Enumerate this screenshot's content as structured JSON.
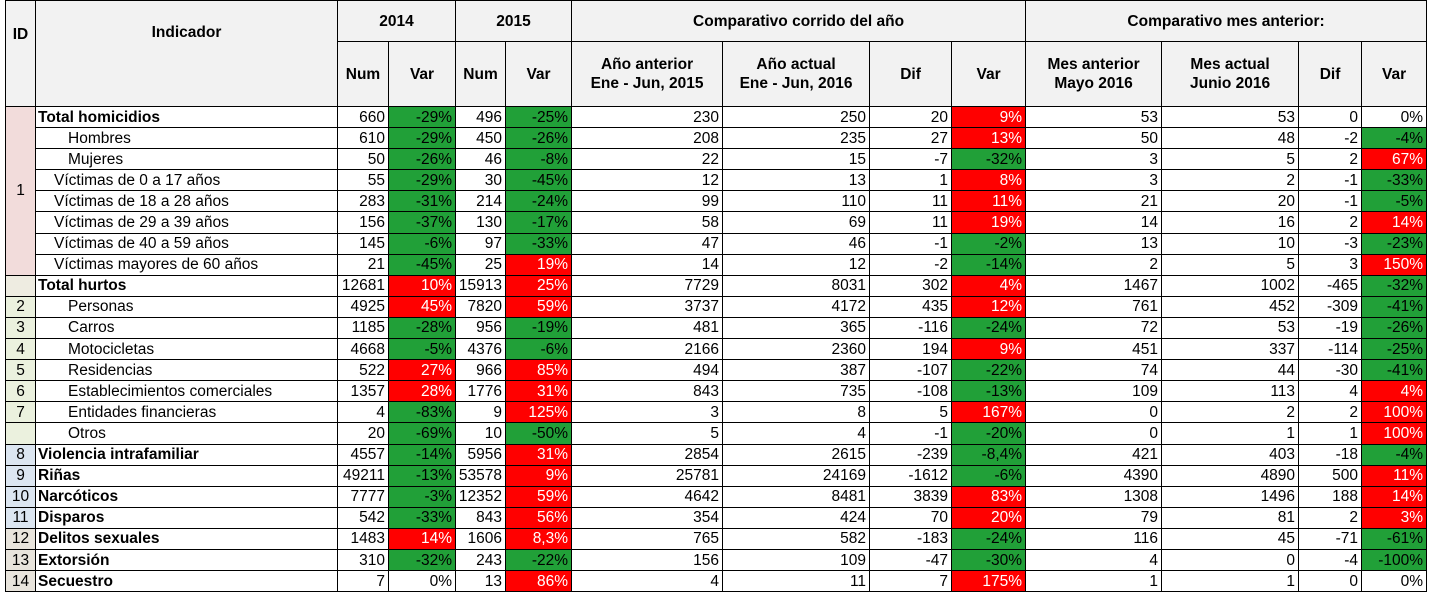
{
  "header": {
    "id": "ID",
    "indicador": "Indicador",
    "y2014": "2014",
    "y2015": "2015",
    "corrido": "Comparativo corrido del año",
    "mes": "Comparativo mes anterior:",
    "num": "Num",
    "var": "Var",
    "anio_anterior": "Año anterior",
    "anio_anterior_range": "Ene - Jun, 2015",
    "anio_actual": "Año actual",
    "anio_actual_range": "Ene - Jun, 2016",
    "dif": "Dif",
    "mes_anterior": "Mes anterior",
    "mes_anterior_name": "Mayo 2016",
    "mes_actual": "Mes actual",
    "mes_actual_name": "Junio 2016"
  },
  "colors": {
    "good": "#21a038",
    "bad": "#ff0000"
  },
  "rows": [
    {
      "id": "1",
      "indicador": "Total homicidios",
      "bold": true,
      "indent": 0,
      "n14": "660",
      "v14": "-29%",
      "c14": "good",
      "n15": "496",
      "v15": "-25%",
      "c15": "good",
      "ant": "230",
      "act": "250",
      "dif": "20",
      "var": "9%",
      "cvar": "bad",
      "mant": "53",
      "mact": "53",
      "mdif": "0",
      "mvar": "0%",
      "cmvar": ""
    },
    {
      "id": "",
      "indicador": "Hombres",
      "bold": false,
      "indent": 2,
      "n14": "610",
      "v14": "-29%",
      "c14": "good",
      "n15": "450",
      "v15": "-26%",
      "c15": "good",
      "ant": "208",
      "act": "235",
      "dif": "27",
      "var": "13%",
      "cvar": "bad",
      "mant": "50",
      "mact": "48",
      "mdif": "-2",
      "mvar": "-4%",
      "cmvar": "good"
    },
    {
      "id": "",
      "indicador": "Mujeres",
      "bold": false,
      "indent": 2,
      "n14": "50",
      "v14": "-26%",
      "c14": "good",
      "n15": "46",
      "v15": "-8%",
      "c15": "good",
      "ant": "22",
      "act": "15",
      "dif": "-7",
      "var": "-32%",
      "cvar": "good",
      "mant": "3",
      "mact": "5",
      "mdif": "2",
      "mvar": "67%",
      "cmvar": "bad"
    },
    {
      "id": "",
      "indicador": "Víctimas de 0 a 17 años",
      "bold": false,
      "indent": 1,
      "n14": "55",
      "v14": "-29%",
      "c14": "good",
      "n15": "30",
      "v15": "-45%",
      "c15": "good",
      "ant": "12",
      "act": "13",
      "dif": "1",
      "var": "8%",
      "cvar": "bad",
      "mant": "3",
      "mact": "2",
      "mdif": "-1",
      "mvar": "-33%",
      "cmvar": "good"
    },
    {
      "id": "",
      "indicador": "Víctimas de 18 a 28 años",
      "bold": false,
      "indent": 1,
      "n14": "283",
      "v14": "-31%",
      "c14": "good",
      "n15": "214",
      "v15": "-24%",
      "c15": "good",
      "ant": "99",
      "act": "110",
      "dif": "11",
      "var": "11%",
      "cvar": "bad",
      "mant": "21",
      "mact": "20",
      "mdif": "-1",
      "mvar": "-5%",
      "cmvar": "good"
    },
    {
      "id": "",
      "indicador": "Víctimas de 29 a 39 años",
      "bold": false,
      "indent": 1,
      "n14": "156",
      "v14": "-37%",
      "c14": "good",
      "n15": "130",
      "v15": "-17%",
      "c15": "good",
      "ant": "58",
      "act": "69",
      "dif": "11",
      "var": "19%",
      "cvar": "bad",
      "mant": "14",
      "mact": "16",
      "mdif": "2",
      "mvar": "14%",
      "cmvar": "bad"
    },
    {
      "id": "",
      "indicador": "Víctimas de 40 a 59 años",
      "bold": false,
      "indent": 1,
      "n14": "145",
      "v14": "-6%",
      "c14": "good",
      "n15": "97",
      "v15": "-33%",
      "c15": "good",
      "ant": "47",
      "act": "46",
      "dif": "-1",
      "var": "-2%",
      "cvar": "good",
      "mant": "13",
      "mact": "10",
      "mdif": "-3",
      "mvar": "-23%",
      "cmvar": "good"
    },
    {
      "id": "",
      "indicador": "Víctimas mayores de 60 años",
      "bold": false,
      "indent": 1,
      "n14": "21",
      "v14": "-45%",
      "c14": "good",
      "n15": "25",
      "v15": "19%",
      "c15": "bad",
      "ant": "14",
      "act": "12",
      "dif": "-2",
      "var": "-14%",
      "cvar": "good",
      "mant": "2",
      "mact": "5",
      "mdif": "3",
      "mvar": "150%",
      "cmvar": "bad"
    },
    {
      "id": "",
      "indicador": "Total hurtos",
      "bold": true,
      "indent": 0,
      "n14": "12681",
      "v14": "10%",
      "c14": "bad",
      "n15": "15913",
      "v15": "25%",
      "c15": "bad",
      "ant": "7729",
      "act": "8031",
      "dif": "302",
      "var": "4%",
      "cvar": "bad",
      "mant": "1467",
      "mact": "1002",
      "mdif": "-465",
      "mvar": "-32%",
      "cmvar": "good"
    },
    {
      "id": "2",
      "indicador": "Personas",
      "bold": false,
      "indent": 2,
      "n14": "4925",
      "v14": "45%",
      "c14": "bad",
      "n15": "7820",
      "v15": "59%",
      "c15": "bad",
      "ant": "3737",
      "act": "4172",
      "dif": "435",
      "var": "12%",
      "cvar": "bad",
      "mant": "761",
      "mact": "452",
      "mdif": "-309",
      "mvar": "-41%",
      "cmvar": "good"
    },
    {
      "id": "3",
      "indicador": "Carros",
      "bold": false,
      "indent": 2,
      "n14": "1185",
      "v14": "-28%",
      "c14": "good",
      "n15": "956",
      "v15": "-19%",
      "c15": "good",
      "ant": "481",
      "act": "365",
      "dif": "-116",
      "var": "-24%",
      "cvar": "good",
      "mant": "72",
      "mact": "53",
      "mdif": "-19",
      "mvar": "-26%",
      "cmvar": "good"
    },
    {
      "id": "4",
      "indicador": "Motocicletas",
      "bold": false,
      "indent": 2,
      "n14": "4668",
      "v14": "-5%",
      "c14": "good",
      "n15": "4376",
      "v15": "-6%",
      "c15": "good",
      "ant": "2166",
      "act": "2360",
      "dif": "194",
      "var": "9%",
      "cvar": "bad",
      "mant": "451",
      "mact": "337",
      "mdif": "-114",
      "mvar": "-25%",
      "cmvar": "good"
    },
    {
      "id": "5",
      "indicador": "Residencias",
      "bold": false,
      "indent": 2,
      "n14": "522",
      "v14": "27%",
      "c14": "bad",
      "n15": "966",
      "v15": "85%",
      "c15": "bad",
      "ant": "494",
      "act": "387",
      "dif": "-107",
      "var": "-22%",
      "cvar": "good",
      "mant": "74",
      "mact": "44",
      "mdif": "-30",
      "mvar": "-41%",
      "cmvar": "good"
    },
    {
      "id": "6",
      "indicador": "Establecimientos comerciales",
      "bold": false,
      "indent": 2,
      "n14": "1357",
      "v14": "28%",
      "c14": "bad",
      "n15": "1776",
      "v15": "31%",
      "c15": "bad",
      "ant": "843",
      "act": "735",
      "dif": "-108",
      "var": "-13%",
      "cvar": "good",
      "mant": "109",
      "mact": "113",
      "mdif": "4",
      "mvar": "4%",
      "cmvar": "bad"
    },
    {
      "id": "7",
      "indicador": "Entidades financieras",
      "bold": false,
      "indent": 2,
      "n14": "4",
      "v14": "-83%",
      "c14": "good",
      "n15": "9",
      "v15": "125%",
      "c15": "bad",
      "ant": "3",
      "act": "8",
      "dif": "5",
      "var": "167%",
      "cvar": "bad",
      "mant": "0",
      "mact": "2",
      "mdif": "2",
      "mvar": "100%",
      "cmvar": "bad"
    },
    {
      "id": "",
      "indicador": "Otros",
      "bold": false,
      "indent": 2,
      "n14": "20",
      "v14": "-69%",
      "c14": "good",
      "n15": "10",
      "v15": "-50%",
      "c15": "good",
      "ant": "5",
      "act": "4",
      "dif": "-1",
      "var": "-20%",
      "cvar": "good",
      "mant": "0",
      "mact": "1",
      "mdif": "1",
      "mvar": "100%",
      "cmvar": "bad"
    },
    {
      "id": "8",
      "indicador": "Violencia intrafamiliar",
      "bold": true,
      "indent": 0,
      "n14": "4557",
      "v14": "-14%",
      "c14": "good",
      "n15": "5956",
      "v15": "31%",
      "c15": "bad",
      "ant": "2854",
      "act": "2615",
      "dif": "-239",
      "var": "-8,4%",
      "cvar": "good",
      "mant": "421",
      "mact": "403",
      "mdif": "-18",
      "mvar": "-4%",
      "cmvar": "good"
    },
    {
      "id": "9",
      "indicador": "Riñas",
      "bold": true,
      "indent": 0,
      "n14": "49211",
      "v14": "-13%",
      "c14": "good",
      "n15": "53578",
      "v15": "9%",
      "c15": "bad",
      "ant": "25781",
      "act": "24169",
      "dif": "-1612",
      "var": "-6%",
      "cvar": "good",
      "mant": "4390",
      "mact": "4890",
      "mdif": "500",
      "mvar": "11%",
      "cmvar": "bad"
    },
    {
      "id": "10",
      "indicador": "Narcóticos",
      "bold": true,
      "indent": 0,
      "n14": "7777",
      "v14": "-3%",
      "c14": "good",
      "n15": "12352",
      "v15": "59%",
      "c15": "bad",
      "ant": "4642",
      "act": "8481",
      "dif": "3839",
      "var": "83%",
      "cvar": "bad",
      "mant": "1308",
      "mact": "1496",
      "mdif": "188",
      "mvar": "14%",
      "cmvar": "bad"
    },
    {
      "id": "11",
      "indicador": "Disparos",
      "bold": true,
      "indent": 0,
      "n14": "542",
      "v14": "-33%",
      "c14": "good",
      "n15": "843",
      "v15": "56%",
      "c15": "bad",
      "ant": "354",
      "act": "424",
      "dif": "70",
      "var": "20%",
      "cvar": "bad",
      "mant": "79",
      "mact": "81",
      "mdif": "2",
      "mvar": "3%",
      "cmvar": "bad"
    },
    {
      "id": "12",
      "indicador": "Delitos sexuales",
      "bold": true,
      "indent": 0,
      "n14": "1483",
      "v14": "14%",
      "c14": "bad",
      "n15": "1606",
      "v15": "8,3%",
      "c15": "bad",
      "ant": "765",
      "act": "582",
      "dif": "-183",
      "var": "-24%",
      "cvar": "good",
      "mant": "116",
      "mact": "45",
      "mdif": "-71",
      "mvar": "-61%",
      "cmvar": "good"
    },
    {
      "id": "13",
      "indicador": "Extorsión",
      "bold": true,
      "indent": 0,
      "n14": "310",
      "v14": "-32%",
      "c14": "good",
      "n15": "243",
      "v15": "-22%",
      "c15": "good",
      "ant": "156",
      "act": "109",
      "dif": "-47",
      "var": "-30%",
      "cvar": "good",
      "mant": "4",
      "mact": "0",
      "mdif": "-4",
      "mvar": "-100%",
      "cmvar": "good"
    },
    {
      "id": "14",
      "indicador": "Secuestro",
      "bold": true,
      "indent": 0,
      "n14": "7",
      "v14": "0%",
      "c14": "",
      "n15": "13",
      "v15": "86%",
      "c15": "bad",
      "ant": "4",
      "act": "11",
      "dif": "7",
      "var": "175%",
      "cvar": "bad",
      "mant": "1",
      "mact": "1",
      "mdif": "0",
      "mvar": "0%",
      "cmvar": ""
    }
  ]
}
